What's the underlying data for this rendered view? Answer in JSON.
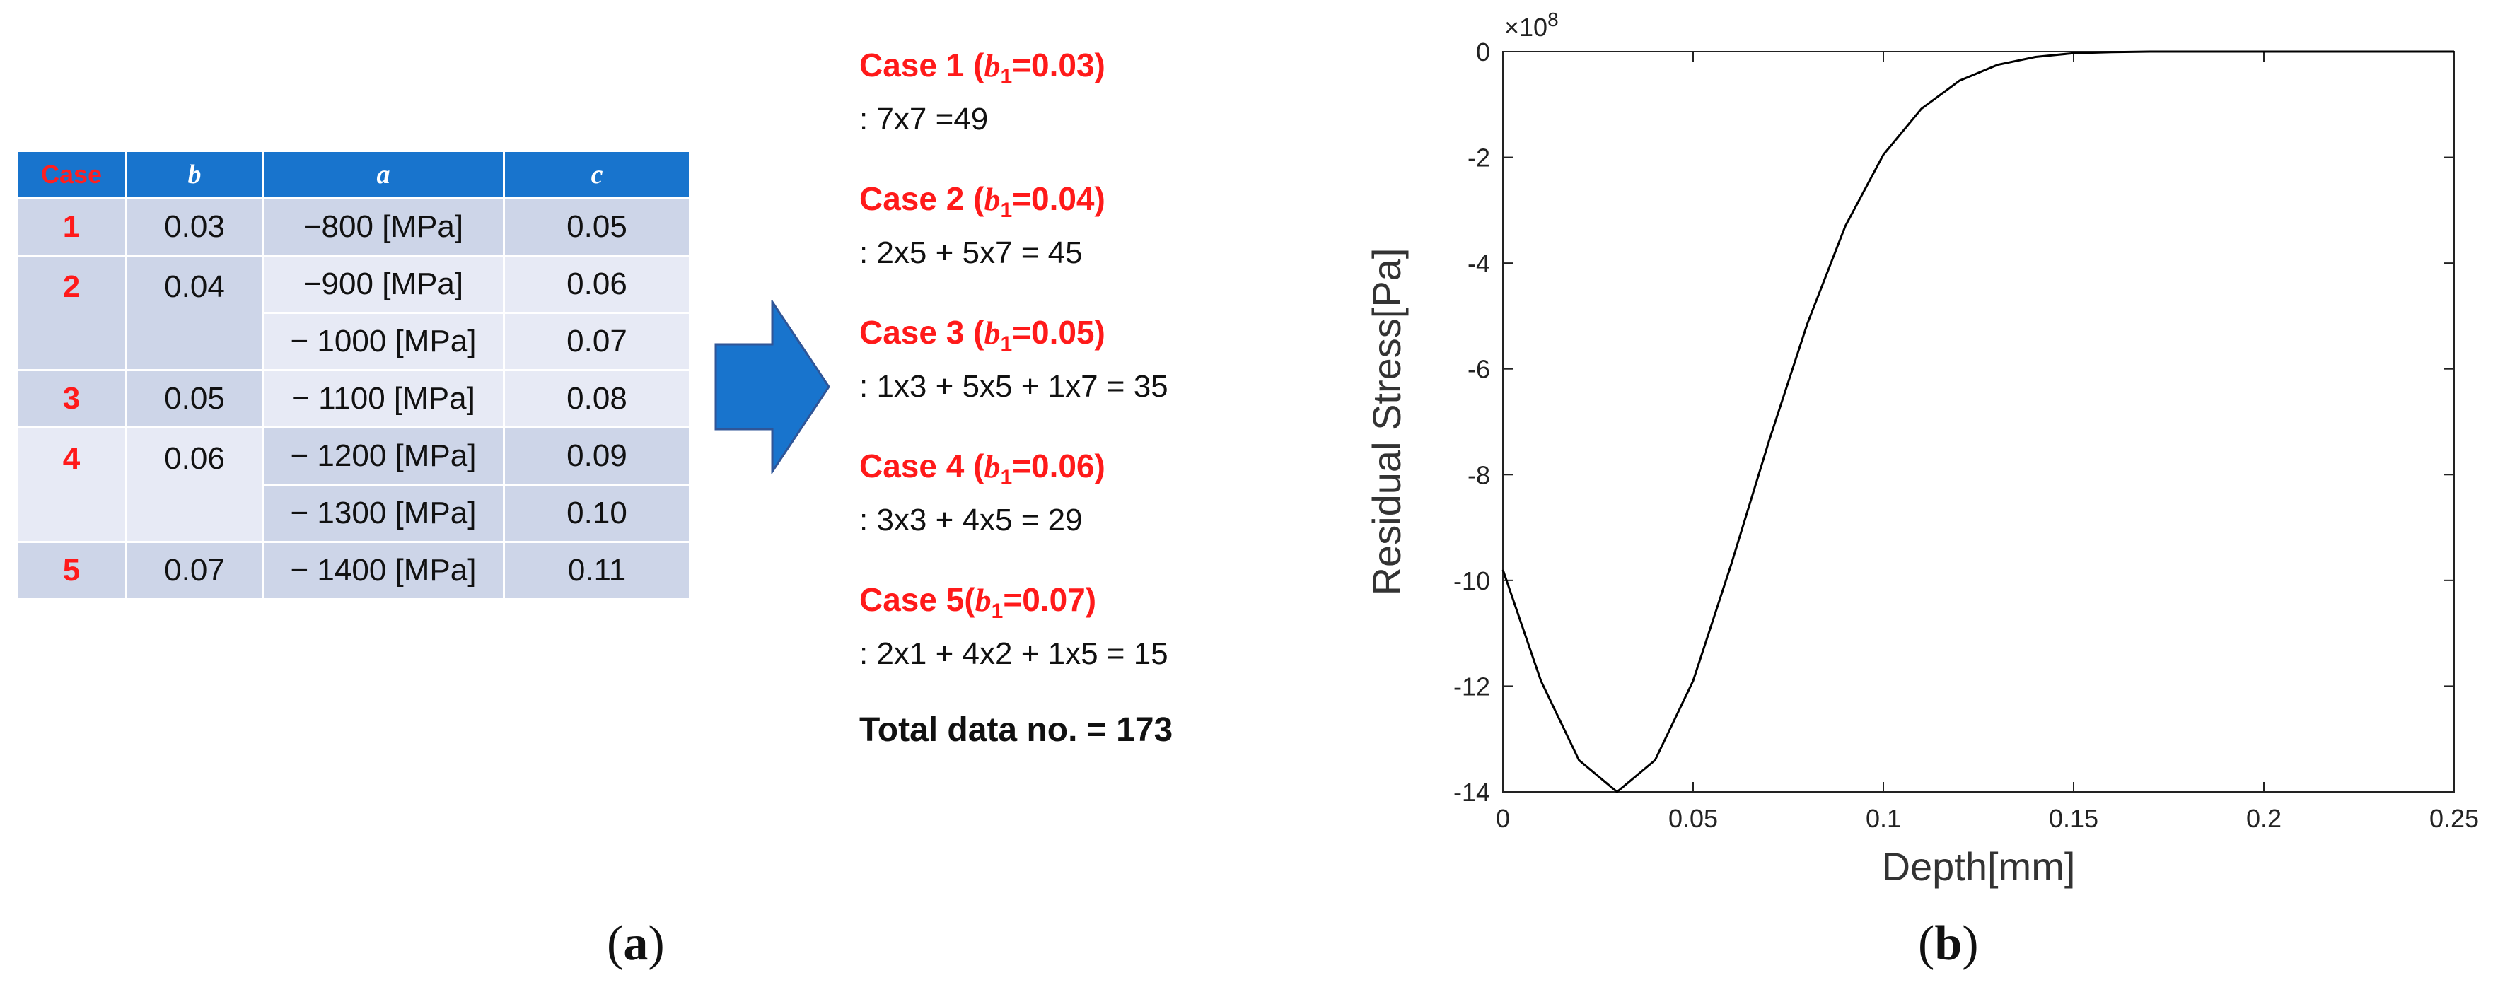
{
  "table": {
    "headers": [
      "Case",
      "b",
      "a",
      "c"
    ],
    "cases": [
      "1",
      "2",
      "3",
      "4",
      "5"
    ],
    "b_values": [
      "0.03",
      "0.04",
      "0.05",
      "0.06",
      "0.07"
    ],
    "a_values": [
      "−800 [MPa]",
      "−900 [MPa]",
      "− 1000 [MPa]",
      "− 1100 [MPa]",
      "− 1200 [MPa]",
      "− 1300 [MPa]",
      "− 1400 [MPa]"
    ],
    "c_values": [
      "0.05",
      "0.06",
      "0.07",
      "0.08",
      "0.09",
      "0.10",
      "0.11"
    ]
  },
  "cases_text": [
    {
      "prefix": "Case 1 (",
      "var": "b",
      "sub": "1",
      "value": "=0.03)",
      "formula": ": 7x7 =49"
    },
    {
      "prefix": "Case 2 (",
      "var": "b",
      "sub": "1",
      "value": "=0.04)",
      "formula": ": 2x5 + 5x7 = 45"
    },
    {
      "prefix": "Case 3 (",
      "var": "b",
      "sub": "1",
      "value": "=0.05)",
      "formula": ": 1x3 + 5x5 + 1x7 = 35"
    },
    {
      "prefix": "Case 4 (",
      "var": "b",
      "sub": "1",
      "value": "=0.06)",
      "formula": ": 3x3 + 4x5 = 29"
    },
    {
      "prefix": "Case 5(",
      "var": "b",
      "sub": "1",
      "value": "=0.07)",
      "formula": ": 2x1 + 4x2 + 1x5 = 15"
    }
  ],
  "total": "Total data no. = 173",
  "panel_labels": {
    "a": "a",
    "b": "b"
  },
  "chart_data": {
    "type": "line",
    "xlabel": "Depth[mm]",
    "ylabel": "Residual Stress[Pa]",
    "y_multiplier_base": "×10",
    "y_multiplier_exp": "8",
    "xlim": [
      0,
      0.25
    ],
    "ylim": [
      -14,
      0
    ],
    "x_ticks": [
      0,
      0.05,
      0.1,
      0.15,
      0.2,
      0.25
    ],
    "x_tick_labels": [
      "0",
      "0.05",
      "0.1",
      "0.15",
      "0.2",
      "0.25"
    ],
    "y_ticks": [
      0,
      -2,
      -4,
      -6,
      -8,
      -10,
      -12,
      -14
    ],
    "y_tick_labels": [
      "0",
      "-2",
      "-4",
      "-6",
      "-8",
      "-10",
      "-12",
      "-14"
    ],
    "grid": false,
    "series": [
      {
        "x": [
          0,
          0.01,
          0.02,
          0.03,
          0.04,
          0.05,
          0.06,
          0.07,
          0.08,
          0.09,
          0.1,
          0.11,
          0.12,
          0.13,
          0.14,
          0.15,
          0.16,
          0.17,
          0.18,
          0.2,
          0.25
        ],
        "y": [
          -9.8,
          -11.9,
          -13.4,
          -14.0,
          -13.4,
          -11.9,
          -9.7,
          -7.35,
          -5.15,
          -3.3,
          -1.95,
          -1.08,
          -0.55,
          -0.25,
          -0.1,
          -0.03,
          -0.01,
          0,
          0,
          0,
          0
        ]
      }
    ],
    "colors": {
      "line": "#000000"
    }
  }
}
